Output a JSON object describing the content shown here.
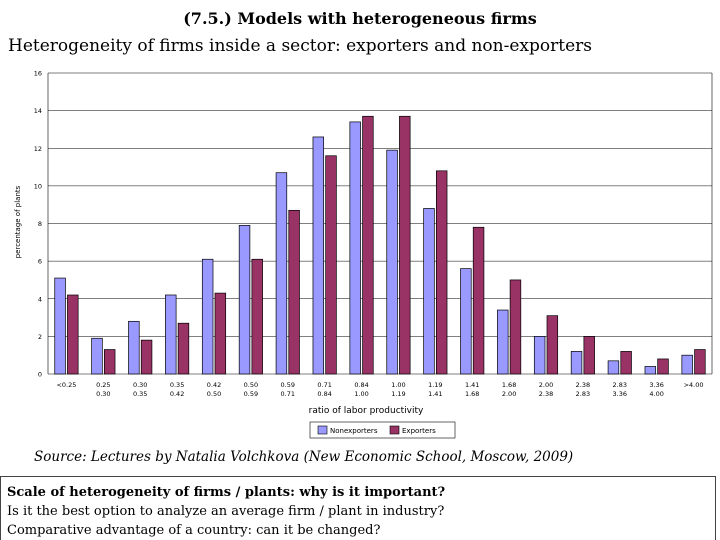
{
  "slide": {
    "title": "(7.5.) Models with heterogeneous firms",
    "subtitle": "Heterogeneity of firms inside a sector: exporters and non-exporters",
    "source": "Source: Lectures by Natalia Volchkova (New Economic School, Moscow, 2009)",
    "box_heading": "Scale of heterogeneity of firms / plants: why is it important?",
    "box_questions": [
      "Is it the best option to analyze an average firm / plant in industry?",
      "Comparative advantage of a country: can it be changed?"
    ]
  },
  "chart_data": {
    "type": "bar",
    "xlabel": "ratio of labor productivity",
    "ylabel": "percentage of plants",
    "ylim": [
      0,
      16
    ],
    "yticks": [
      0,
      2,
      4,
      6,
      8,
      10,
      12,
      14,
      16
    ],
    "grid": true,
    "legend_position": "bottom",
    "categories": [
      [
        "<0.25"
      ],
      [
        "0.25",
        "0.30"
      ],
      [
        "0.30",
        "0.35"
      ],
      [
        "0.35",
        "0.42"
      ],
      [
        "0.42",
        "0.50"
      ],
      [
        "0.50",
        "0.59"
      ],
      [
        "0.59",
        "0.71"
      ],
      [
        "0.71",
        "0.84"
      ],
      [
        "0.84",
        "1.00"
      ],
      [
        "1.00",
        "1.19"
      ],
      [
        "1.19",
        "1.41"
      ],
      [
        "1.41",
        "1.68"
      ],
      [
        "1.68",
        "2.00"
      ],
      [
        "2.00",
        "2.38"
      ],
      [
        "2.38",
        "2.83"
      ],
      [
        "2.83",
        "3.36"
      ],
      [
        "3.36",
        "4.00"
      ],
      [
        ">4.00"
      ]
    ],
    "series": [
      {
        "name": "Nonexporters",
        "color": "#9999ff",
        "values": [
          5.1,
          1.9,
          2.8,
          4.2,
          6.1,
          7.9,
          10.7,
          12.6,
          13.4,
          11.9,
          8.8,
          5.6,
          3.4,
          2.0,
          1.2,
          0.7,
          0.4,
          1.0
        ]
      },
      {
        "name": "Exporters",
        "color": "#993366",
        "values": [
          4.2,
          1.3,
          1.8,
          2.7,
          4.3,
          6.1,
          8.7,
          11.6,
          13.7,
          13.7,
          10.8,
          7.8,
          5.0,
          3.1,
          2.0,
          1.2,
          0.8,
          1.3
        ]
      }
    ]
  }
}
